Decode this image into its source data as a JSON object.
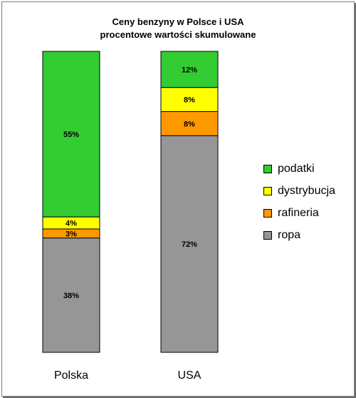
{
  "chart_data": {
    "type": "bar",
    "stacked": true,
    "percent_stacked": true,
    "title": "Ceny benzyny w Polsce i USA",
    "subtitle": "procentowe wartości skumulowane",
    "categories": [
      "Polska",
      "USA"
    ],
    "series": [
      {
        "name": "ropa",
        "color": "#969696",
        "values": [
          38,
          72
        ],
        "labels": [
          "38%",
          "72%"
        ]
      },
      {
        "name": "rafineria",
        "color": "#FF9900",
        "values": [
          3,
          8
        ],
        "labels": [
          "3%",
          "8%"
        ]
      },
      {
        "name": "dystrybucja",
        "color": "#FFFF00",
        "values": [
          4,
          8
        ],
        "labels": [
          "4%",
          "8%"
        ]
      },
      {
        "name": "podatki",
        "color": "#33CC33",
        "values": [
          55,
          12
        ],
        "labels": [
          "55%",
          "12%"
        ]
      }
    ],
    "legend_order": [
      "podatki",
      "dystrybucja",
      "rafineria",
      "ropa"
    ],
    "legend_position": "right",
    "ylim": [
      0,
      100
    ],
    "grid": false
  }
}
